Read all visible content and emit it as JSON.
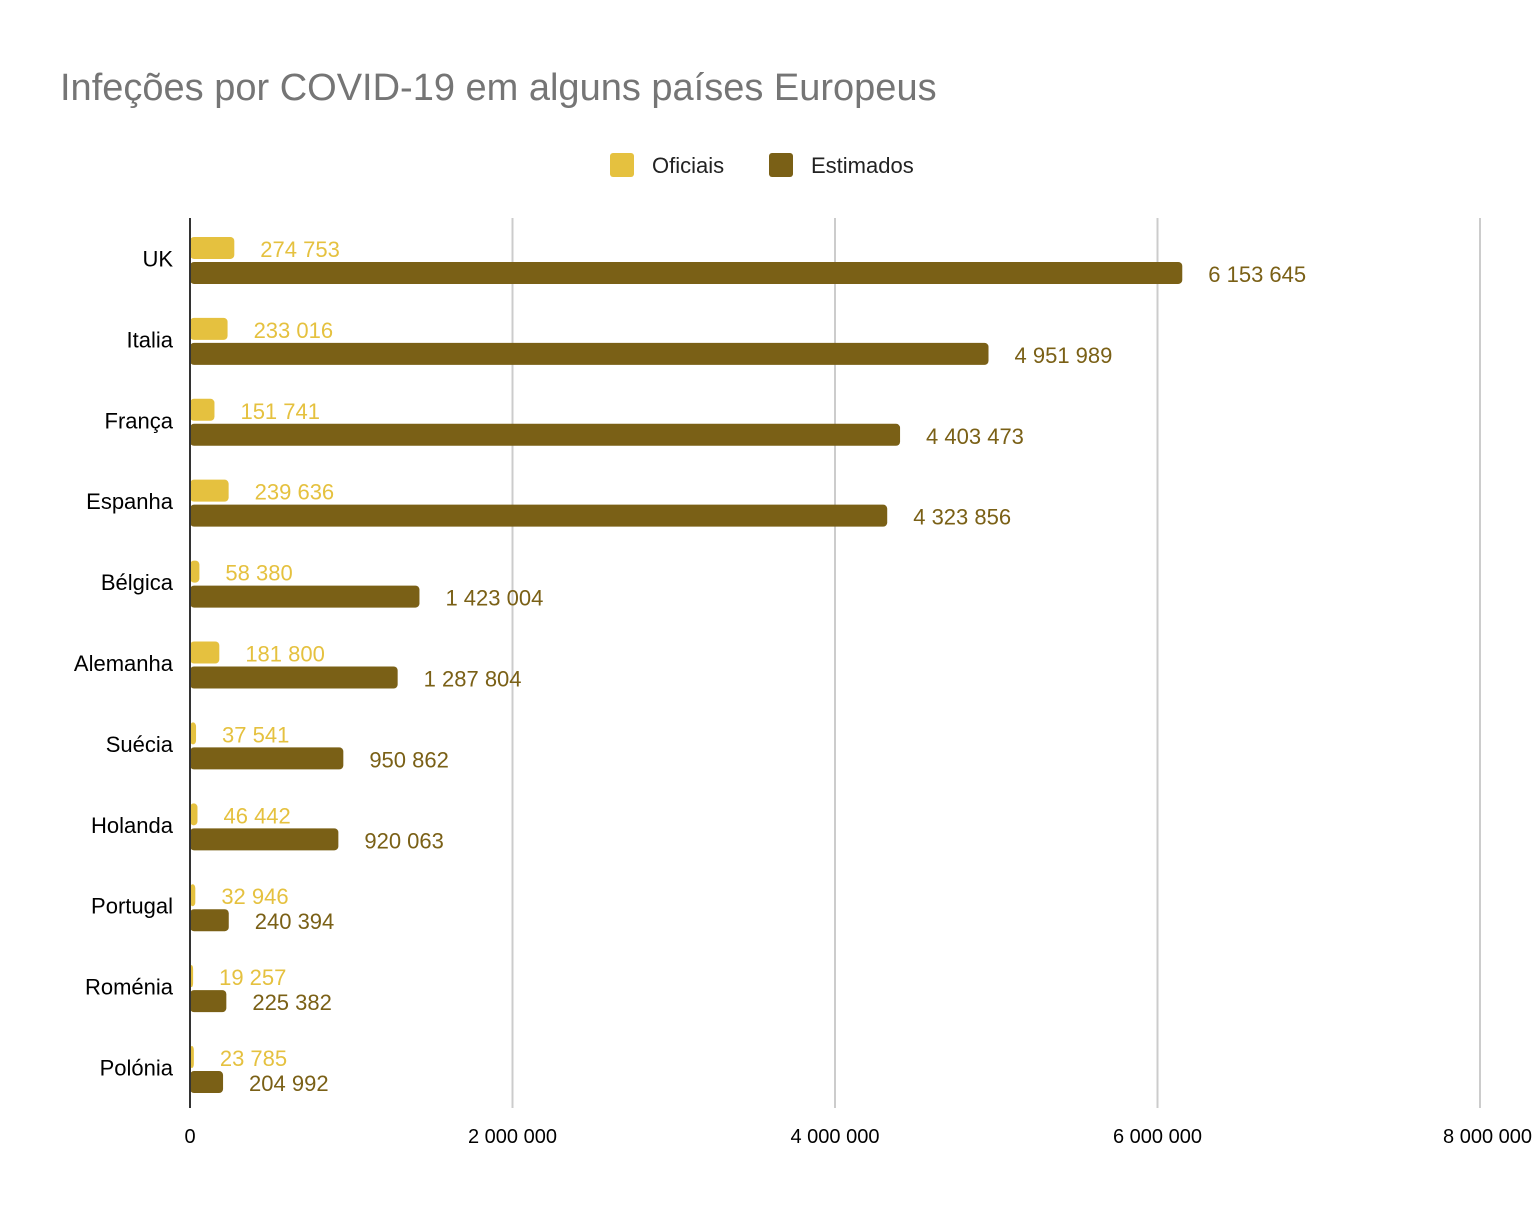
{
  "chart_data": {
    "type": "bar",
    "orientation": "horizontal",
    "title": "Infeções por COVID-19 em alguns países Europeus",
    "categories": [
      "UK",
      "Italia",
      "França",
      "Espanha",
      "Bélgica",
      "Alemanha",
      "Suécia",
      "Holanda",
      "Portugal",
      "Roménia",
      "Polónia"
    ],
    "series": [
      {
        "name": "Oficiais",
        "color": "#e5c13f",
        "values": [
          274753,
          233016,
          151741,
          239636,
          58380,
          181800,
          37541,
          46442,
          32946,
          19257,
          23785
        ],
        "labels": [
          "274 753",
          "233 016",
          "151 741",
          "239 636",
          "58 380",
          "181 800",
          "37 541",
          "46 442",
          "32 946",
          "19 257",
          "23 785"
        ]
      },
      {
        "name": "Estimados",
        "color": "#7a6016",
        "values": [
          6153645,
          4951989,
          4403473,
          4323856,
          1423004,
          1287804,
          950862,
          920063,
          240394,
          225382,
          204992
        ],
        "labels": [
          "6 153 645",
          "4 951 989",
          "4 403 473",
          "4 323 856",
          "1 423 004",
          "1 287 804",
          "950 862",
          "920 063",
          "240 394",
          "225 382",
          "204 992"
        ]
      }
    ],
    "xlim": [
      0,
      8000000
    ],
    "xticks": [
      0,
      2000000,
      4000000,
      6000000,
      8000000
    ],
    "xtick_labels": [
      "0",
      "2 000 000",
      "4 000 000",
      "6 000 000",
      "8 000 000"
    ],
    "xlabel": "",
    "ylabel": "",
    "grid": "vertical",
    "legend": "top-center",
    "gridline_color": "#cccccc",
    "axis_color": "#333333"
  }
}
